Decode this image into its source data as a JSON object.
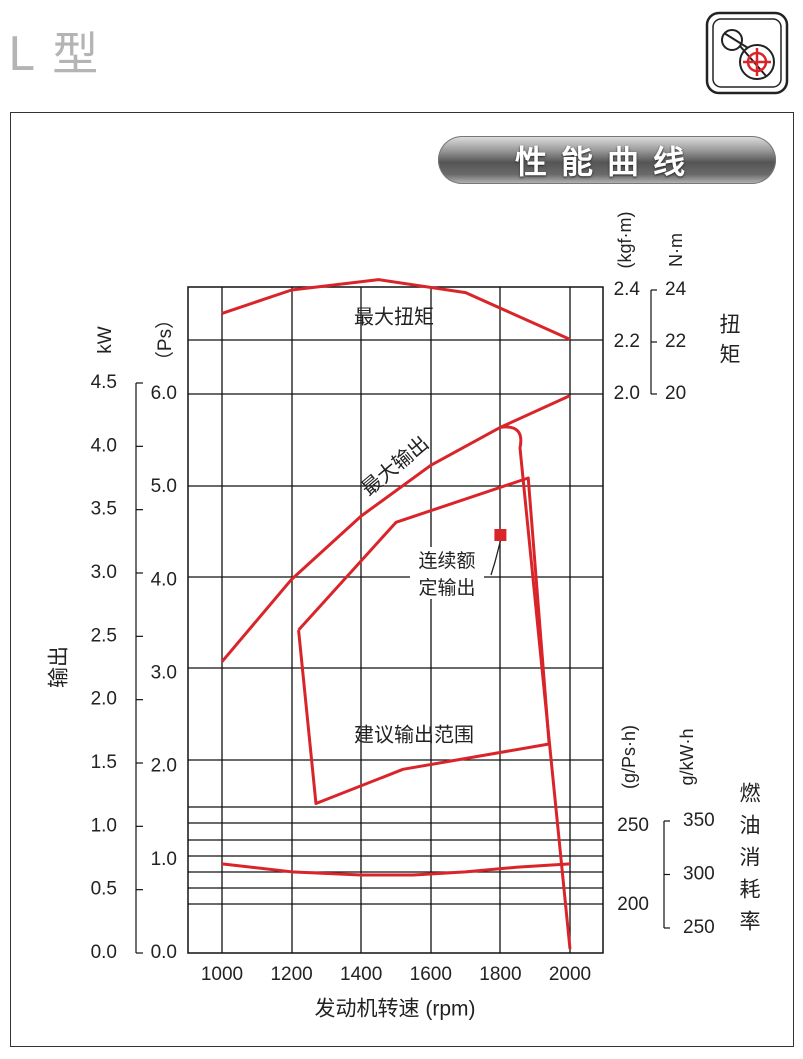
{
  "header": {
    "model": "L 型",
    "logo_icon": "belt-drive-pulley-icon"
  },
  "banner": {
    "title": "性能曲线"
  },
  "colors": {
    "curve": "#d9252a",
    "grid": "#111111",
    "text": "#222222",
    "banner_dark": "#555555"
  },
  "chart_data": {
    "type": "line",
    "title": "性能曲线",
    "xlabel": "发动机转速 (rpm)",
    "xlim": [
      1000,
      2000
    ],
    "x_ticks": [
      "1000",
      "1200",
      "1400",
      "1600",
      "1800",
      "2000"
    ],
    "grid": true,
    "axes": {
      "output_kw": {
        "ticks": [
          "4.5",
          "4.0",
          "3.5",
          "3.0",
          "2.5",
          "2.0",
          "1.5",
          "1.0",
          "0.5",
          "0.0"
        ],
        "unit": "kW",
        "label": "输出"
      },
      "output_ps": {
        "ticks": [
          "6.0",
          "5.0",
          "4.0",
          "3.0",
          "2.0",
          "1.0",
          "0.0"
        ],
        "unit": "（Ps）"
      },
      "torque_kgfm": {
        "ticks": [
          "2.4",
          "2.2",
          "2.0"
        ],
        "unit": "(kgf·m)"
      },
      "torque_nm": {
        "ticks": [
          "24",
          "22",
          "20"
        ],
        "unit": "N·m",
        "label": "扭矩"
      },
      "fuel_gpsh": {
        "ticks": [
          "250",
          "200"
        ],
        "unit": "(g/Ps·h)"
      },
      "fuel_gkwh": {
        "ticks": [
          "350",
          "300",
          "250"
        ],
        "unit": "g/kW·h",
        "label": "燃油消耗率"
      }
    },
    "series": [
      {
        "name": "最大扭矩",
        "unit": "kgf·m",
        "x": [
          1000,
          1200,
          1450,
          1700,
          2000
        ],
        "y": [
          2.31,
          2.4,
          2.44,
          2.39,
          2.21
        ]
      },
      {
        "name": "最大输出",
        "unit": "kW",
        "x": [
          1000,
          1200,
          1400,
          1600,
          1800,
          2000
        ],
        "y": [
          2.3,
          2.95,
          3.45,
          3.85,
          4.15,
          4.4
        ]
      },
      {
        "name": "建议输出范围",
        "unit": "kW",
        "points": [
          [
            1220,
            2.55
          ],
          [
            1270,
            1.18
          ],
          [
            1520,
            1.45
          ],
          [
            1940,
            1.65
          ],
          [
            1880,
            3.75
          ],
          [
            1500,
            3.4
          ],
          [
            1220,
            2.55
          ]
        ]
      },
      {
        "name": "燃油消耗率",
        "unit": "g/Ps·h",
        "x": [
          1000,
          1200,
          1400,
          1550,
          1700,
          1850,
          2000
        ],
        "y": [
          226,
          221,
          219,
          219,
          221,
          224,
          226
        ]
      }
    ],
    "annotations": [
      {
        "label": "连续额",
        "label2": "定输出",
        "x": 1800,
        "y": 3.3
      },
      {
        "label": "建议输出范围"
      }
    ]
  }
}
